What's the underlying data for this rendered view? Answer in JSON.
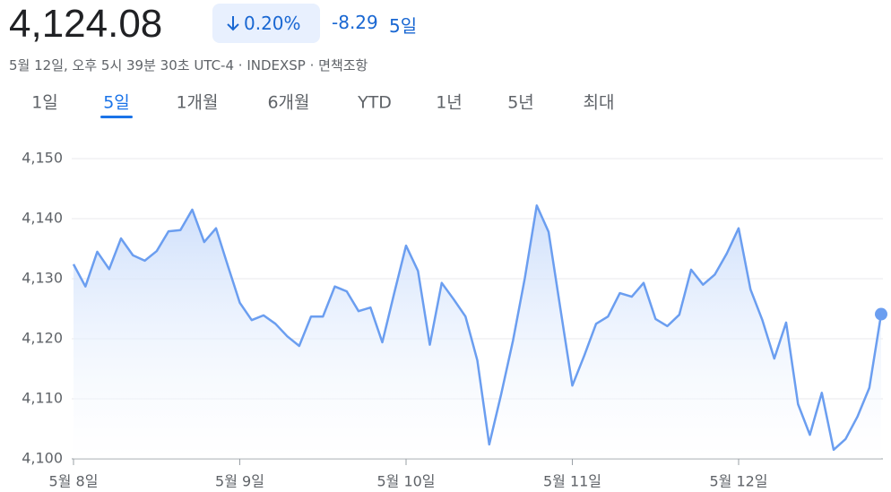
{
  "header": {
    "price": "4,124.08",
    "change_percent": "0.20%",
    "change": "-8.29",
    "period": "5일",
    "timestamp": "5월 12일, 오후 5시 39분 30초 UTC-4 · INDEXSP · 면책조항"
  },
  "tabs": [
    "1일",
    "5일",
    "1개월",
    "6개월",
    "YTD",
    "1년",
    "5년",
    "최대"
  ],
  "selected_tab": 1,
  "chart_data": {
    "type": "area",
    "categories": [
      "5월 8일",
      null,
      null,
      null,
      null,
      null,
      null,
      null,
      null,
      null,
      null,
      null,
      null,
      null,
      "5월 9일",
      null,
      null,
      null,
      null,
      null,
      null,
      null,
      null,
      null,
      null,
      null,
      null,
      null,
      "5월 10일",
      null,
      null,
      null,
      null,
      null,
      null,
      null,
      null,
      null,
      null,
      null,
      null,
      null,
      "5월 11일",
      null,
      null,
      null,
      null,
      null,
      null,
      null,
      null,
      null,
      null,
      null,
      null,
      null,
      "5월 12일",
      null,
      null,
      null,
      null,
      null,
      null,
      null,
      null,
      null,
      null,
      null,
      null
    ],
    "values": [
      4132.4,
      4128.7,
      4134.5,
      4131.6,
      4136.7,
      4133.9,
      4133.0,
      4134.6,
      4137.9,
      4138.1,
      4141.5,
      4136.1,
      4138.4,
      4132.1,
      4126.0,
      4123.1,
      4123.9,
      4122.5,
      4120.4,
      4118.8,
      4123.7,
      4123.7,
      4128.7,
      4127.9,
      4124.6,
      4125.2,
      4119.4,
      4127.6,
      4135.5,
      4131.3,
      4119.0,
      4129.3,
      4126.6,
      4123.7,
      4116.4,
      4102.4,
      4110.7,
      4119.7,
      4130.1,
      4142.2,
      4137.8,
      4124.9,
      4112.2,
      4117.2,
      4122.5,
      4123.7,
      4127.6,
      4127.0,
      4129.3,
      4123.3,
      4122.1,
      4124.0,
      4131.5,
      4129.0,
      4130.7,
      4134.2,
      4138.4,
      4128.2,
      4123.1,
      4116.7,
      4122.7,
      4109.1,
      4104.0,
      4111.0,
      4101.5,
      4103.3,
      4107.0,
      4111.8,
      4124.1
    ],
    "color": "#6b9ef0",
    "ylim": [
      4100,
      4150
    ],
    "yticks": [
      {
        "value": 4100,
        "label": "4,100"
      },
      {
        "value": 4110,
        "label": "4,110"
      },
      {
        "value": 4120,
        "label": "4,120"
      },
      {
        "value": 4130,
        "label": "4,130"
      },
      {
        "value": 4140,
        "label": "4,140"
      },
      {
        "value": 4150,
        "label": "4,150"
      }
    ],
    "grid": true
  }
}
